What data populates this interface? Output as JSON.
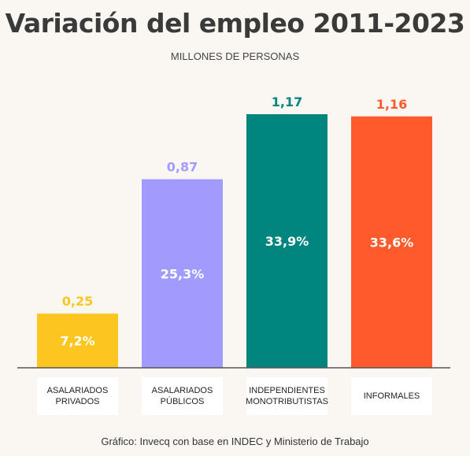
{
  "chart_data": {
    "type": "bar",
    "title": "Variación del empleo 2011-2023",
    "subtitle": "MILLONES DE PERSONAS",
    "categories": [
      "ASALARIADOS PRIVADOS",
      "ASALARIADOS PÚBLICOS",
      "INDEPENDIENTES MONOTRIBUTISTAS",
      "INFORMALES"
    ],
    "values": [
      0.25,
      0.87,
      1.17,
      1.16
    ],
    "value_labels": [
      "0,25",
      "0,87",
      "1,17",
      "1,16"
    ],
    "share_labels": [
      "7,2%",
      "25,3%",
      "33,9%",
      "33,6%"
    ],
    "colors": [
      "#fbc61f",
      "#a29bfe",
      "#00857f",
      "#ff5a2b"
    ],
    "value_label_colors": [
      "#fbc61f",
      "#a29bfe",
      "#00857f",
      "#ff5a2b"
    ],
    "ylim": [
      0,
      1.17
    ],
    "grid": false,
    "xlabel": "",
    "ylabel": ""
  },
  "source": "Gráfico: Invecq con base en INDEC y Ministerio de Trabajo"
}
